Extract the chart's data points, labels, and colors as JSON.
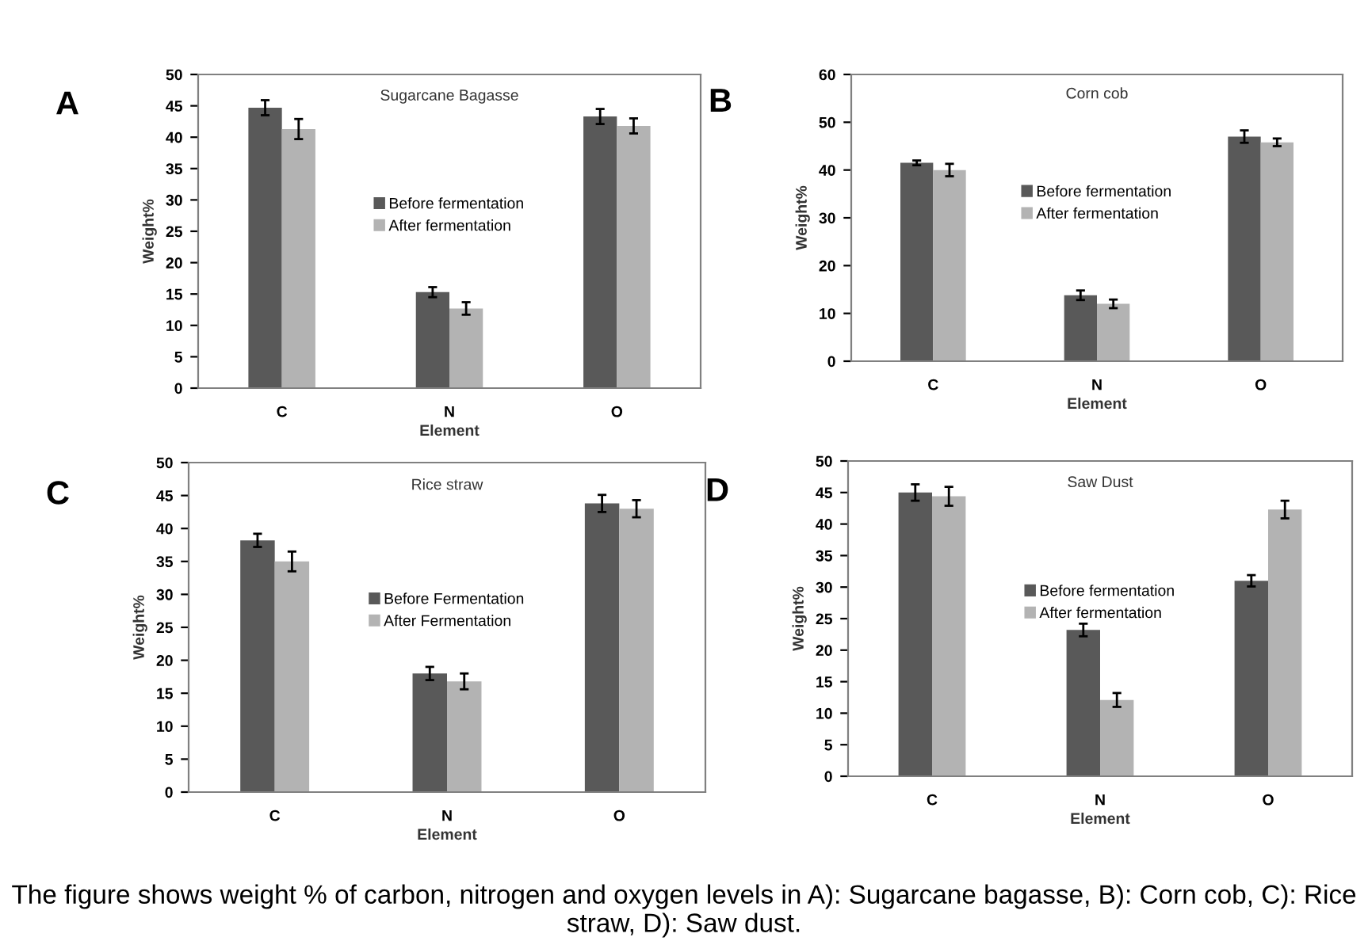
{
  "chart_data": [
    {
      "type": "bar",
      "title": "Sugarcane Bagasse",
      "xlabel": "Element",
      "ylabel": "Weight%",
      "categories": [
        "C",
        "N",
        "O"
      ],
      "ylim": [
        0,
        50
      ],
      "yticks": [
        0,
        5,
        10,
        15,
        20,
        25,
        30,
        35,
        40,
        45,
        50
      ],
      "grid": false,
      "legend": "center",
      "annotations": [
        "A"
      ],
      "series": [
        {
          "name": "Before fermentation",
          "color": "#595959",
          "values": [
            44.7,
            15.3,
            43.3
          ],
          "errors": [
            1.2,
            0.8,
            1.2
          ]
        },
        {
          "name": "After fermentation",
          "color": "#b3b3b3",
          "values": [
            41.3,
            12.7,
            41.8
          ],
          "errors": [
            1.6,
            1.0,
            1.2
          ]
        }
      ]
    },
    {
      "type": "bar",
      "title": "Corn cob",
      "xlabel": "Element",
      "ylabel": "Weight%",
      "categories": [
        "C",
        "N",
        "O"
      ],
      "ylim": [
        0,
        60
      ],
      "yticks": [
        0,
        10,
        20,
        30,
        40,
        50,
        60
      ],
      "grid": false,
      "legend": "center",
      "annotations": [
        "B"
      ],
      "series": [
        {
          "name": "Before fermentation",
          "color": "#595959",
          "values": [
            41.5,
            13.8,
            47.0
          ],
          "errors": [
            0.5,
            1.0,
            1.3
          ]
        },
        {
          "name": "After fermentation",
          "color": "#b3b3b3",
          "values": [
            40.0,
            12.0,
            45.8
          ],
          "errors": [
            1.3,
            0.9,
            0.8
          ]
        }
      ]
    },
    {
      "type": "bar",
      "title": "Rice straw",
      "xlabel": "Element",
      "ylabel": "Weight%",
      "categories": [
        "C",
        "N",
        "O"
      ],
      "ylim": [
        0,
        50
      ],
      "yticks": [
        0,
        5,
        10,
        15,
        20,
        25,
        30,
        35,
        40,
        45,
        50
      ],
      "grid": false,
      "legend": "center",
      "annotations": [
        "C"
      ],
      "series": [
        {
          "name": "Before Fermentation",
          "color": "#595959",
          "values": [
            38.2,
            18.0,
            43.8
          ],
          "errors": [
            1.0,
            1.0,
            1.3
          ]
        },
        {
          "name": "After Fermentation",
          "color": "#b3b3b3",
          "values": [
            35.0,
            16.8,
            43.0
          ],
          "errors": [
            1.5,
            1.2,
            1.3
          ]
        }
      ]
    },
    {
      "type": "bar",
      "title": "Saw Dust",
      "xlabel": "Element",
      "ylabel": "Weight%",
      "categories": [
        "C",
        "N",
        "O"
      ],
      "ylim": [
        0,
        50
      ],
      "yticks": [
        0,
        5,
        10,
        15,
        20,
        25,
        30,
        35,
        40,
        45,
        50
      ],
      "grid": false,
      "legend": "center",
      "annotations": [
        "D",
        "The figure shows weight % of carbon, nitrogen and oxygen levels in A): Sugarcane bagasse, B): Corn cob, C): Rice straw, D): Saw dust."
      ],
      "series": [
        {
          "name": "Before fermentation",
          "color": "#595959",
          "values": [
            45.0,
            23.2,
            31.0
          ],
          "errors": [
            1.3,
            1.0,
            0.9
          ]
        },
        {
          "name": "After fermentation",
          "color": "#b3b3b3",
          "values": [
            44.4,
            12.1,
            42.3
          ],
          "errors": [
            1.5,
            1.1,
            1.4
          ]
        }
      ]
    }
  ]
}
